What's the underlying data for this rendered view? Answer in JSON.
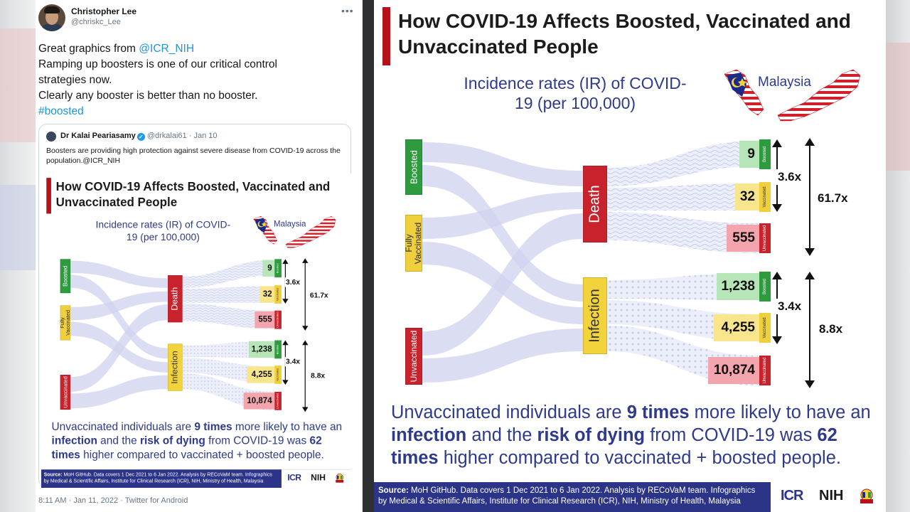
{
  "tweet": {
    "author_name": "Christopher Lee",
    "author_handle": "@chriskc_Lee",
    "more_icon": "ellipsis-icon",
    "body_lines": {
      "l1_prefix": "Great graphics from ",
      "l1_mention": "@ICR_NIH",
      "l2": "Ramping up boosters is one of our critical control",
      "l3": "strategies now.",
      "l4": "Clearly any booster is better than no booster.",
      "hashtag": "#boosted"
    },
    "footer": "8:11 AM · Jan 11, 2022 · Twitter for Android",
    "link_color": "#1b95e0"
  },
  "quoted_tweet": {
    "author_name": "Dr Kalai Peariasamy",
    "verified_icon": "verified-badge-icon",
    "author_handle": "@drkalai61",
    "date": "Jan 10",
    "text": "Boosters are providing high protection against severe disease from COVID-19 across the population.@ICR_NIH"
  },
  "infographic": {
    "title": "How COVID-19 Affects Boosted, Vaccinated and Unvaccinated People",
    "subtitle": "Incidence rates (IR) of COVID-19 (per 100,000)",
    "map_label": "Malaysia",
    "groups": {
      "boosted": "Boosted",
      "fully_vaccinated": "Fully Vaccinated",
      "unvaccinated": "Unvaccinated"
    },
    "outcomes": {
      "death": "Death",
      "infection": "Infection"
    },
    "values": {
      "death_boosted": "9",
      "death_vaccinated": "32",
      "death_unvaccinated": "555",
      "infection_boosted": "1,238",
      "infection_vaccinated": "4,255",
      "infection_unvaccinated": "10,874"
    },
    "tags": {
      "boosted": "Boosted",
      "vaccinated": "Vaccinated",
      "unvaccinated": "Unvaccinated"
    },
    "ratios": {
      "death_vax_vs_boost": "3.6x",
      "death_unvax_vs_boost": "61.7x",
      "infection_vax_vs_boost": "3.4x",
      "infection_unvax_vs_boost": "8.8x"
    },
    "summary": {
      "p1": "Unvaccinated individuals are ",
      "b1": "9 times",
      "p2": " more likely to have an ",
      "b2": "infection",
      "p3": " and the ",
      "b3": "risk of dying",
      "p4": "  from COVID-19 was ",
      "b4": "62 times",
      "p5": " higher compared to vaccinated + boosted people."
    },
    "footer": {
      "source_label": "Source:",
      "source_text": " MoH GitHub. Data covers 1 Dec 2021 to 6 Jan 2022. Analysis by RECoVaM team. Infographics by Medical & Scientific Affairs, Institute for Clinical Research (ICR), NIH,  Ministry of Health, Malaysia",
      "logo_icr": "ICR",
      "logo_nih": "NIH",
      "crest_icon": "moh-crest-icon"
    },
    "colors": {
      "brand_red": "#b5121b",
      "brand_blue": "#2e3a8c",
      "footer_blue": "#2b3487",
      "boosted_green": "#2e9b3f",
      "vaccinated_yellow": "#f0cf3c",
      "unvaccinated_red": "#c8232c"
    }
  }
}
